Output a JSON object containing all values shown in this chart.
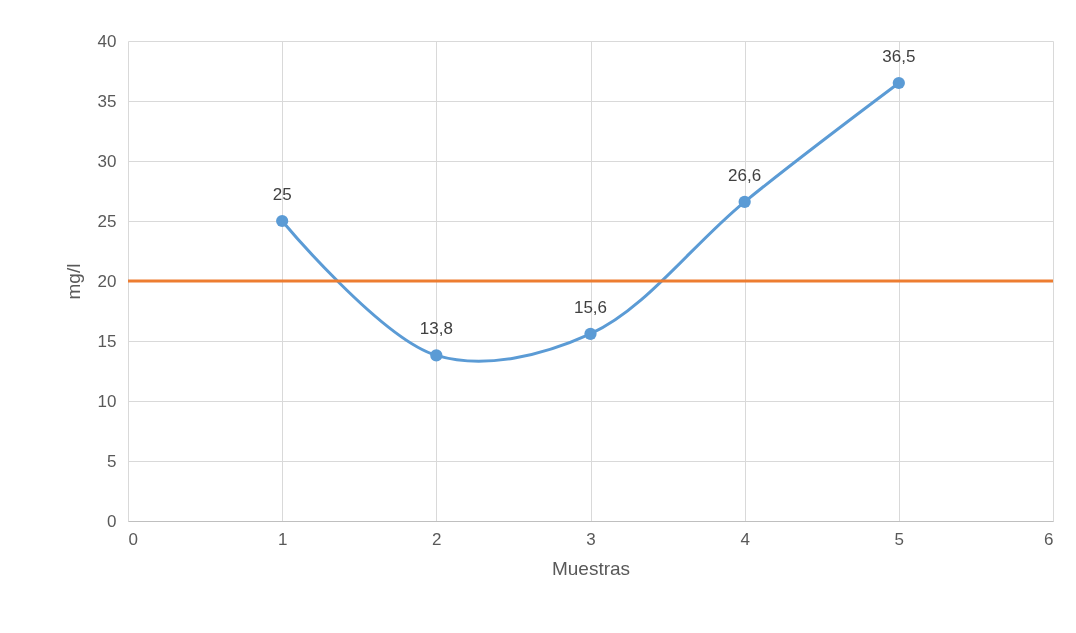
{
  "chart_data": {
    "type": "line",
    "xlabel": "Muestras",
    "ylabel": "mg/l",
    "x": [
      1,
      2,
      3,
      4,
      5
    ],
    "series": [
      {
        "color": "#5b9bd5",
        "values": [
          25,
          13.8,
          15.6,
          26.6,
          36.5
        ],
        "value_labels": [
          "25",
          "13,8",
          "15,6",
          "26,6",
          "36,5"
        ]
      }
    ],
    "xlim": [
      0,
      6
    ],
    "xticks": [
      0,
      1,
      2,
      3,
      4,
      5,
      6
    ],
    "ylim": [
      0,
      40
    ],
    "yticks": [
      0,
      5,
      10,
      15,
      20,
      25,
      30,
      35,
      40
    ],
    "ref_lines": [
      {
        "axis": "y",
        "value": 20,
        "color": "#ed7d31"
      }
    ],
    "grid": true,
    "marker": "circle",
    "line_style": "solid"
  }
}
